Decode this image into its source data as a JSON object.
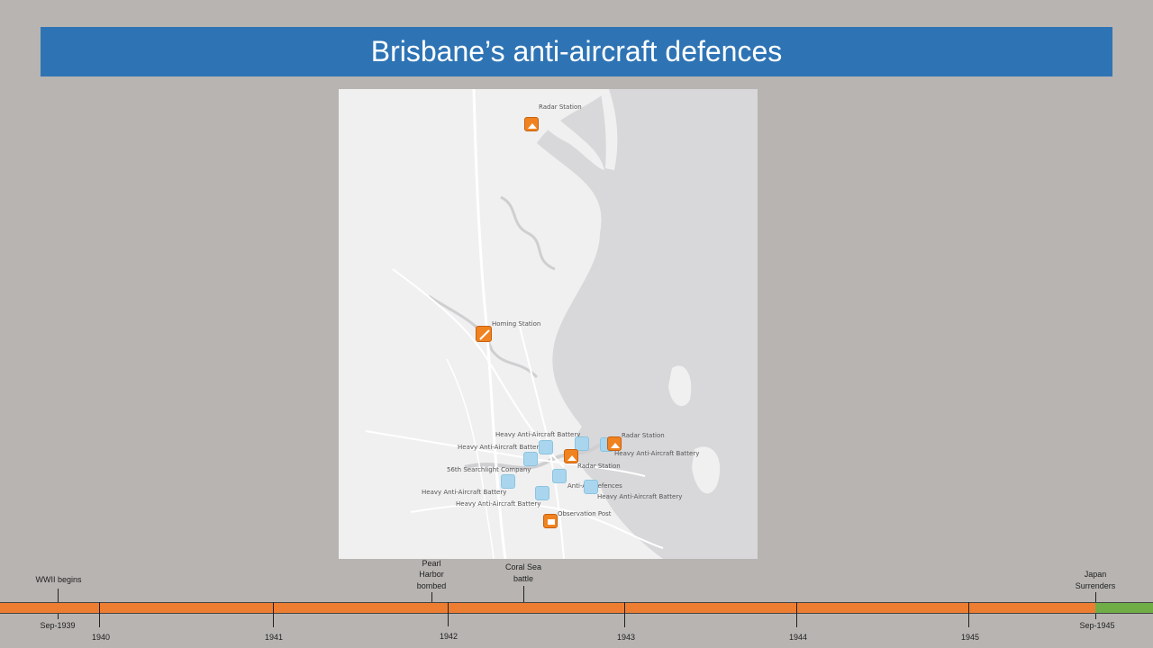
{
  "title": "Brisbane’s anti-aircraft defences",
  "map": {
    "labels": {
      "radar_station_north": "Radar Station",
      "homing_station": "Homing Station",
      "haab_1": "Heavy Anti-Aircraft Battery",
      "haab_2": "Heavy Anti-Aircraft Battery",
      "radar_station_east": "Radar Station",
      "haab_3": "Heavy Anti-Aircraft Battery",
      "searchlight": "56th Searchlight Company",
      "radar_station_mid": "Radar Station",
      "anti_air": "Anti-Air Defences",
      "haab_4": "Heavy Anti-Aircraft Battery",
      "haab_5": "Heavy Anti-Aircraft Battery",
      "haab_6": "Heavy Anti-Aircraft Battery",
      "observation_post": "Observation Post"
    },
    "colors": {
      "orange_marker": "#f0831f",
      "blue_marker": "#a9d6ee"
    }
  },
  "timeline": {
    "events": {
      "wwii_begins": "WWII begins",
      "pearl_harbor_1": "Pearl",
      "pearl_harbor_2": "Harbor",
      "pearl_harbor_3": "bombed",
      "coral_sea_1": "Coral Sea",
      "coral_sea_2": "battle",
      "japan_1": "Japan",
      "japan_2": "Surrenders"
    },
    "dates": {
      "sep_1939": "Sep-1939",
      "y1940": "1940",
      "y1941": "1941",
      "y1942": "1942",
      "y1943": "1943",
      "y1944": "1944",
      "y1945": "1945",
      "sep_1945": "Sep-1945"
    },
    "colors": {
      "war": "#ed7d31",
      "peace": "#70ad47"
    }
  }
}
